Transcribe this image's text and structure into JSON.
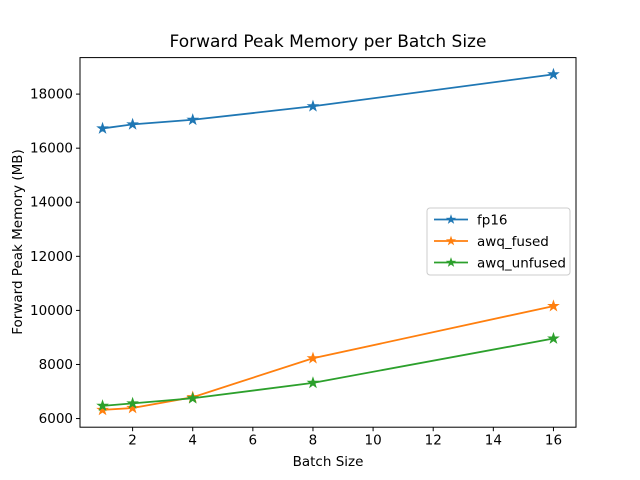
{
  "chart_data": {
    "type": "line",
    "title": "Forward Peak Memory per Batch Size",
    "xlabel": "Batch Size",
    "ylabel": "Forward Peak Memory (MB)",
    "x": [
      1,
      2,
      4,
      8,
      16
    ],
    "series": [
      {
        "name": "fp16",
        "color": "#1f77b4",
        "values": [
          16730,
          16880,
          17050,
          17550,
          18730
        ]
      },
      {
        "name": "awq_fused",
        "color": "#ff7f0e",
        "values": [
          6320,
          6390,
          6790,
          8230,
          10160
        ]
      },
      {
        "name": "awq_unfused",
        "color": "#2ca02c",
        "values": [
          6470,
          6560,
          6750,
          7320,
          8960
        ]
      }
    ],
    "xticks": [
      2,
      4,
      6,
      8,
      10,
      12,
      14,
      16
    ],
    "yticks": [
      6000,
      8000,
      10000,
      12000,
      14000,
      16000,
      18000
    ],
    "xlim": [
      0.25,
      16.75
    ],
    "ylim": [
      5680,
      19350
    ],
    "marker": "star",
    "grid": false,
    "legend_position": "center-right",
    "colors": {
      "axis": "#000000",
      "legend_border": "#cccccc",
      "background": "#ffffff"
    }
  }
}
